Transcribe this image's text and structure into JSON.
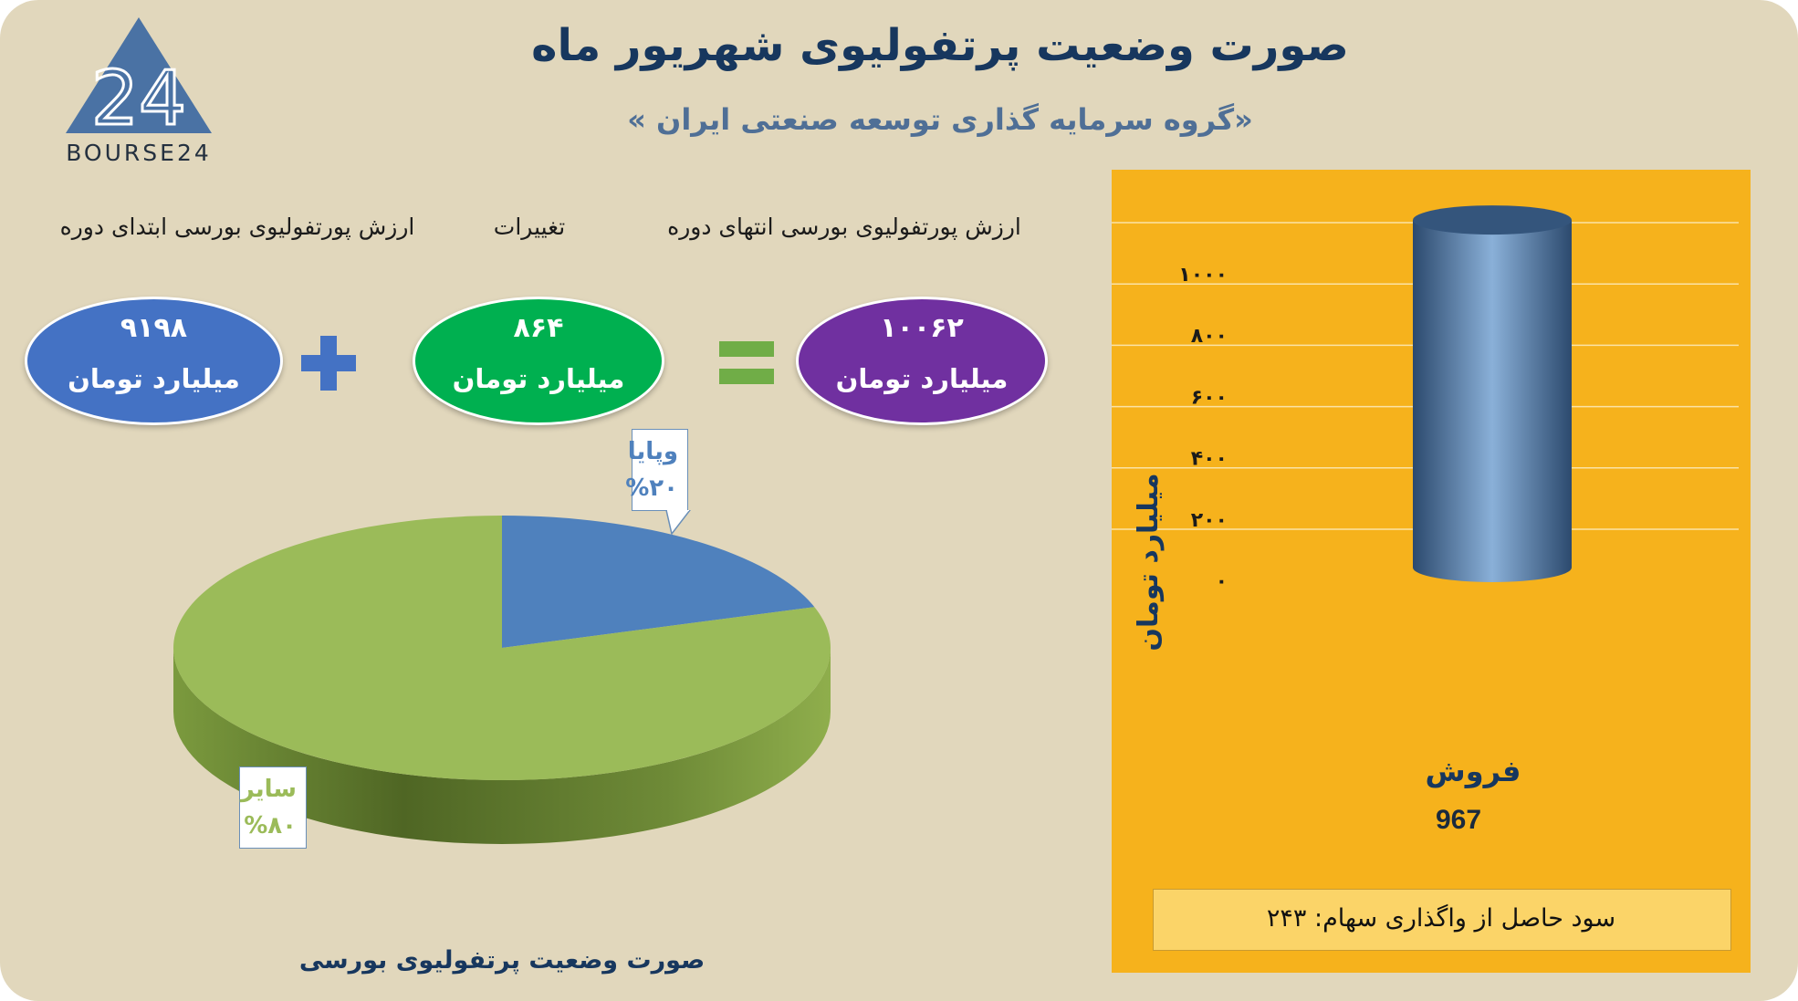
{
  "title": "صورت وضعیت پرتفولیوی شهریور ماه",
  "subtitle": "«گروه سرمایه گذاری توسعه صنعتی ایران »",
  "logo": {
    "text": "BOURSE24",
    "mark": "24",
    "color": "#4a72a4"
  },
  "equation": {
    "start": {
      "label": "ارزش پورتفولیوی بورسی ابتدای دوره",
      "value": "۹۱۹۸",
      "unit": "میلیارد تومان",
      "color": "#4472c4"
    },
    "change": {
      "label": "تغییرات",
      "value": "۸۶۴",
      "unit": "میلیارد تومان",
      "color": "#00b050"
    },
    "end": {
      "label": "ارزش پورتفولیوی بورسی انتهای دوره",
      "value": "۱۰۰۶۲",
      "unit": "میلیارد تومان",
      "color": "#7030a0"
    },
    "plus_color": "#4472c4",
    "equals_color": "#70ad47"
  },
  "chart_data": [
    {
      "type": "pie",
      "title": "صورت وضعیت پرتفولیوی بورسی",
      "slices": [
        {
          "label": "وپایا",
          "percent_label": "%۲۰",
          "value": 20,
          "color": "#4f81bd"
        },
        {
          "label": "سایر",
          "percent_label": "%۸۰",
          "value": 80,
          "color": "#9bbb59"
        }
      ]
    },
    {
      "type": "bar",
      "categories": [
        "فروش"
      ],
      "values": [
        967
      ],
      "value_label": "967",
      "ylabel": "میلیارد تومان",
      "ylim": [
        0,
        1000
      ],
      "yticks": [
        "۰",
        "۲۰۰",
        "۴۰۰",
        "۶۰۰",
        "۸۰۰",
        "۱۰۰۰"
      ],
      "grid": true,
      "bar_color": "#4f81bd",
      "background": "#f6b21c"
    }
  ],
  "profit_note": "سود حاصل از واگذاری سهام: ۲۴۳"
}
